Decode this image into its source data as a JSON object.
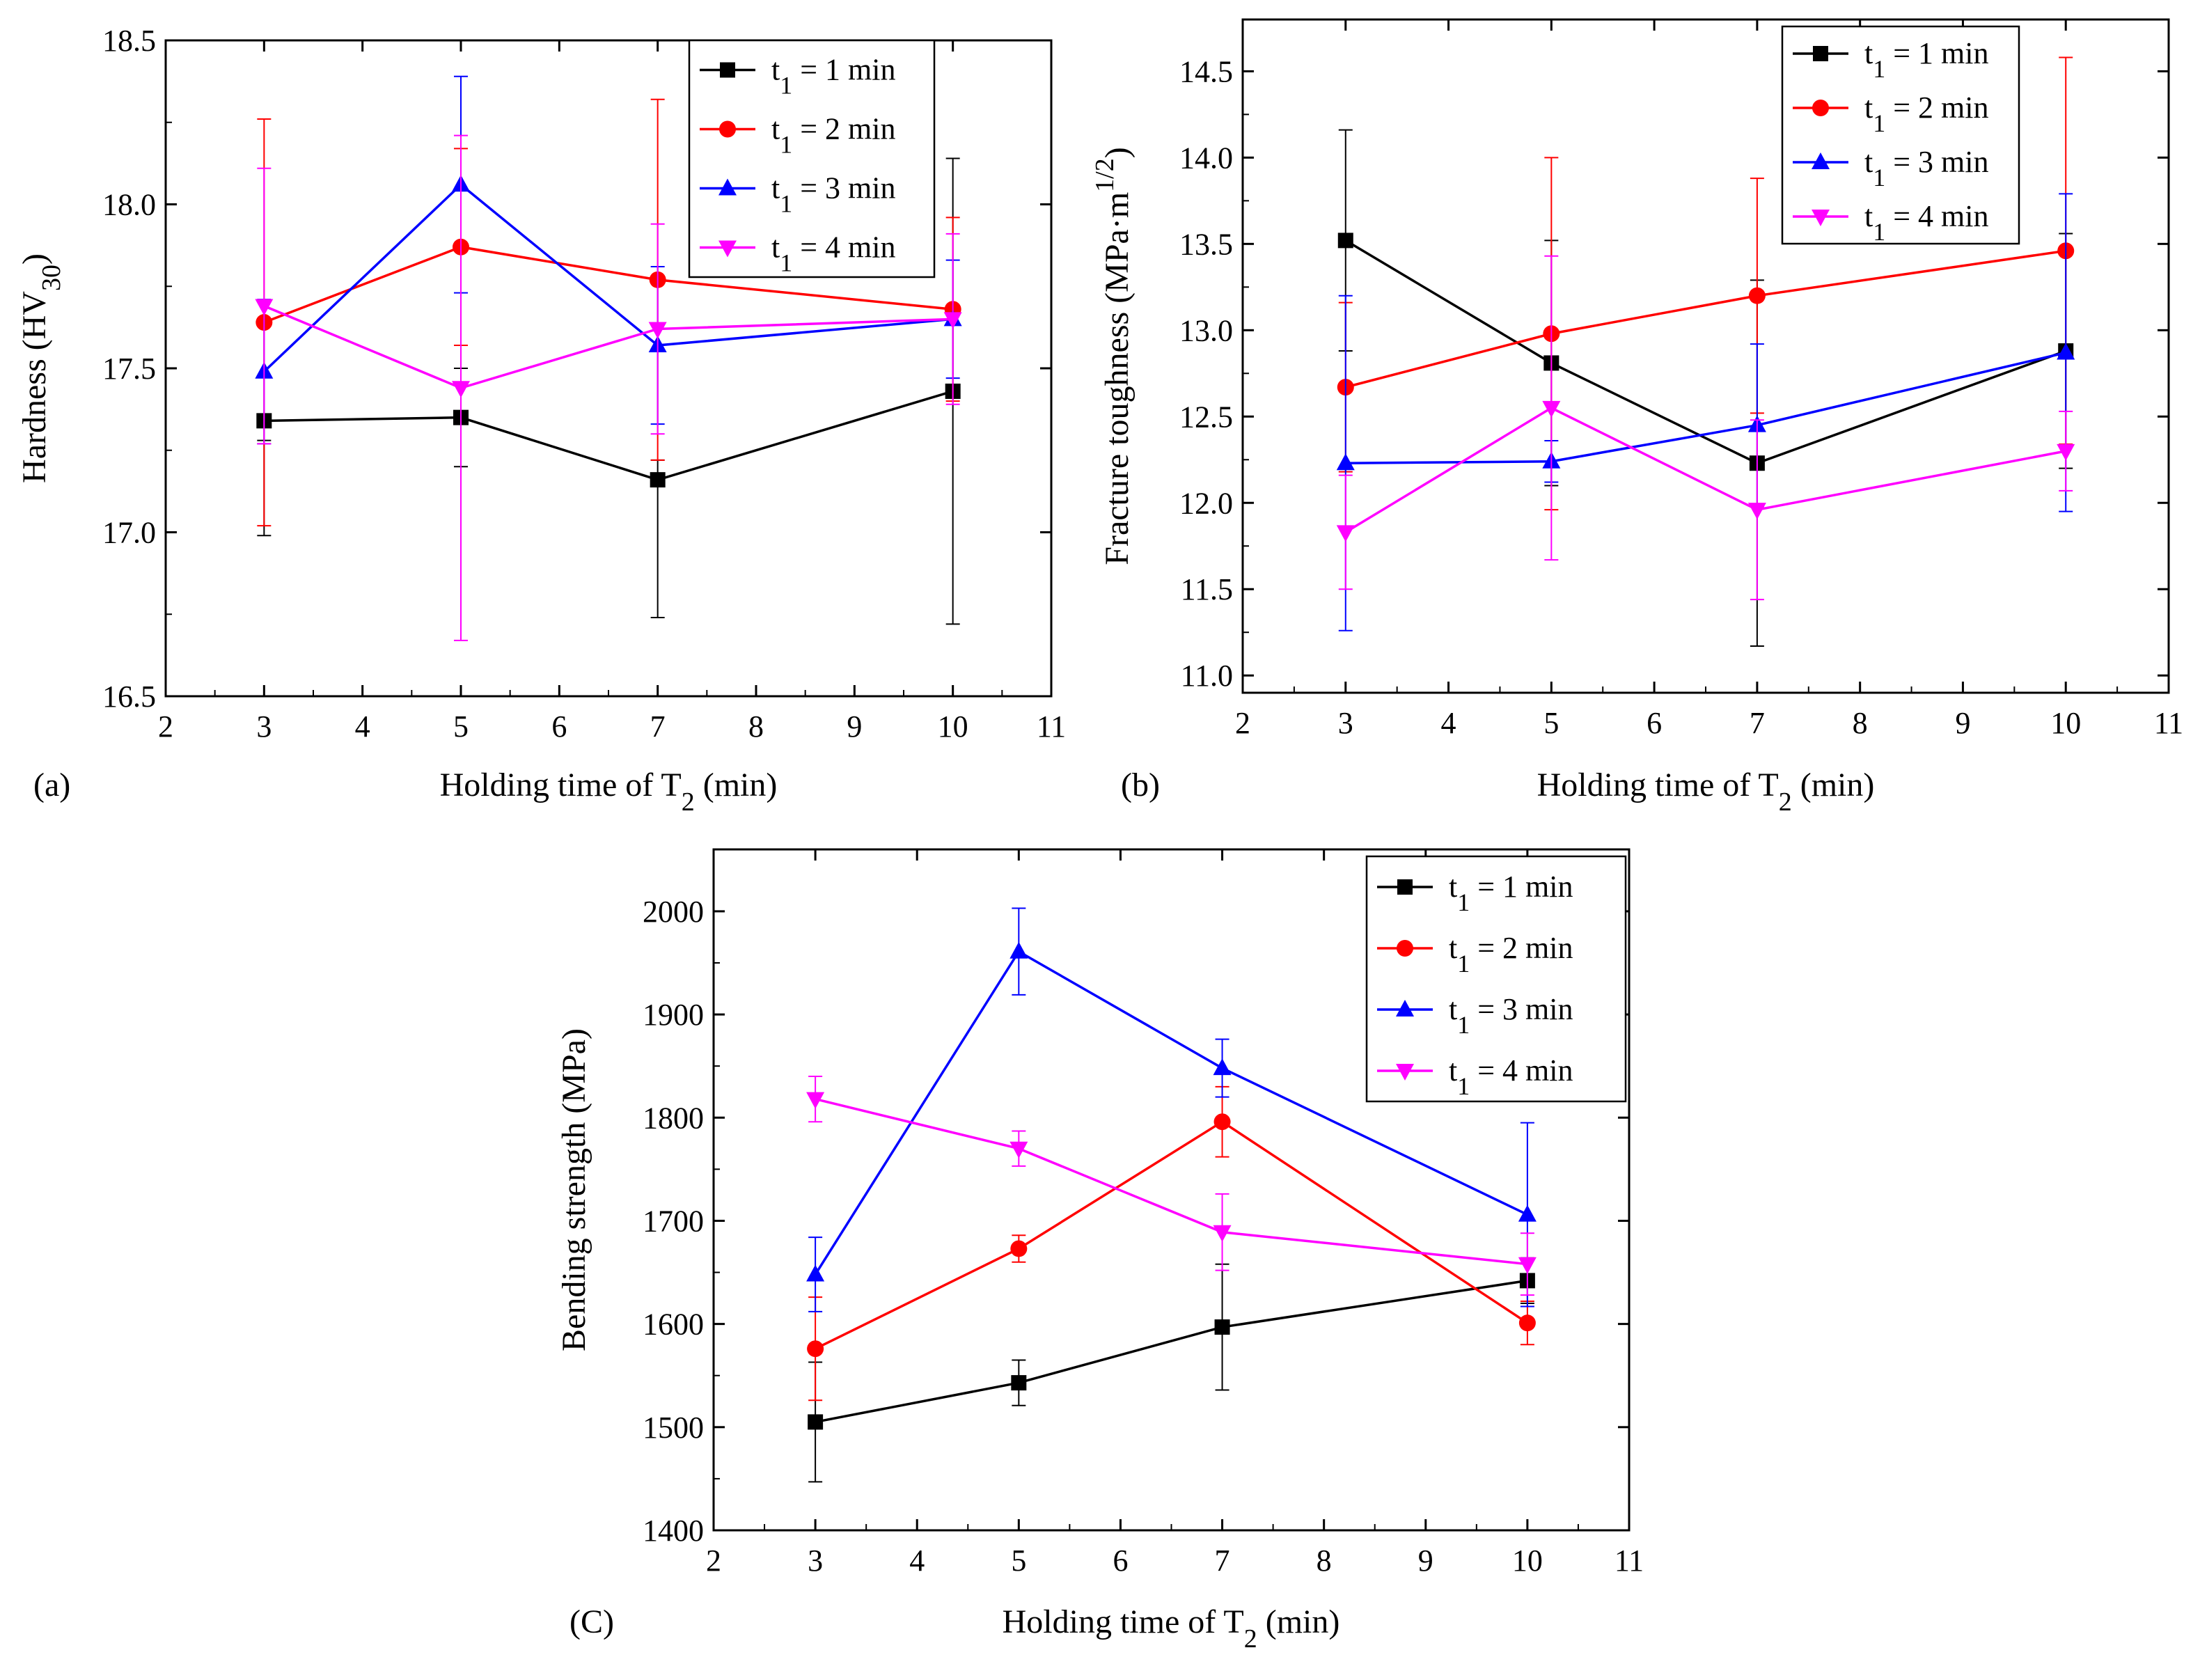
{
  "figure": {
    "series_template": [
      {
        "name": "t1 = 1 min",
        "color": "#000000",
        "marker": "square"
      },
      {
        "name": "t1 = 2 min",
        "color": "#ff0000",
        "marker": "circle"
      },
      {
        "name": "t1 = 3 min",
        "color": "#0000ff",
        "marker": "triangle-up"
      },
      {
        "name": "t1 = 4 min",
        "color": "#ff00ff",
        "marker": "triangle-down"
      }
    ]
  },
  "chart_data": [
    {
      "id": "a",
      "type": "line",
      "panel_label": "(a)",
      "title": "",
      "xlabel": {
        "main": "Holding time of T",
        "sub": "2",
        "tail": " (min)"
      },
      "ylabel": {
        "main": "Hardness (HV",
        "sub": "30",
        "tail": ")"
      },
      "x": [
        3,
        5,
        7,
        10
      ],
      "xlim": [
        2,
        11
      ],
      "ylim": [
        16.5,
        18.5
      ],
      "xticks": [
        "2",
        "3",
        "4",
        "5",
        "6",
        "7",
        "8",
        "9",
        "10",
        "11"
      ],
      "yticks": [
        "16.5",
        "17.0",
        "17.5",
        "18.0",
        "18.5"
      ],
      "ytick_values": [
        16.5,
        17.0,
        17.5,
        18.0,
        18.5
      ],
      "legend_position": "top-right",
      "series": [
        {
          "name": "t1 = 1 min",
          "legend_main": "t",
          "legend_sub": "1",
          "legend_tail": " = 1 min",
          "color": "#000000",
          "marker": "square",
          "values": [
            17.34,
            17.35,
            17.16,
            17.43
          ],
          "err_low": [
            16.99,
            17.2,
            16.74,
            16.72
          ],
          "err_high": [
            17.28,
            17.5,
            17.22,
            18.14
          ]
        },
        {
          "name": "t1 = 2 min",
          "legend_main": "t",
          "legend_sub": "1",
          "legend_tail": " = 2 min",
          "color": "#ff0000",
          "marker": "circle",
          "values": [
            17.64,
            17.87,
            17.77,
            17.68
          ],
          "err_low": [
            17.02,
            17.57,
            17.22,
            17.4
          ],
          "err_high": [
            18.26,
            18.17,
            18.32,
            17.96
          ]
        },
        {
          "name": "t1 = 3 min",
          "legend_main": "t",
          "legend_sub": "1",
          "legend_tail": " = 3 min",
          "color": "#0000ff",
          "marker": "triangle-up",
          "values": [
            17.49,
            18.06,
            17.57,
            17.65
          ],
          "err_low": [
            17.27,
            17.73,
            17.33,
            17.47
          ],
          "err_high": [
            17.71,
            18.39,
            17.81,
            17.83
          ]
        },
        {
          "name": "t1 = 4 min",
          "legend_main": "t",
          "legend_sub": "1",
          "legend_tail": " = 4 min",
          "color": "#ff00ff",
          "marker": "triangle-down",
          "values": [
            17.69,
            17.44,
            17.62,
            17.65
          ],
          "err_low": [
            17.27,
            16.67,
            17.3,
            17.39
          ],
          "err_high": [
            18.11,
            18.21,
            17.94,
            17.91
          ]
        }
      ]
    },
    {
      "id": "b",
      "type": "line",
      "panel_label": "(b)",
      "title": "",
      "xlabel": {
        "main": "Holding time of T",
        "sub": "2",
        "tail": " (min)"
      },
      "ylabel": {
        "main": "Fracture toughness (MPa·m",
        "sup": "1/2",
        "tail": ")"
      },
      "x": [
        3,
        5,
        7,
        10
      ],
      "xlim": [
        2,
        11
      ],
      "ylim": [
        10.9,
        14.8
      ],
      "xticks": [
        "2",
        "3",
        "4",
        "5",
        "6",
        "7",
        "8",
        "9",
        "10",
        "11"
      ],
      "yticks": [
        "11.0",
        "11.5",
        "12.0",
        "12.5",
        "13.0",
        "13.5",
        "14.0",
        "14.5"
      ],
      "ytick_values": [
        11.0,
        11.5,
        12.0,
        12.5,
        13.0,
        13.5,
        14.0,
        14.5
      ],
      "legend_position": "top-right",
      "series": [
        {
          "name": "t1 = 1 min",
          "legend_main": "t",
          "legend_sub": "1",
          "legend_tail": " = 1 min",
          "color": "#000000",
          "marker": "square",
          "values": [
            13.52,
            12.81,
            12.23,
            12.88
          ],
          "err_low": [
            12.88,
            12.1,
            11.17,
            12.2
          ],
          "err_high": [
            14.16,
            13.52,
            13.29,
            13.56
          ]
        },
        {
          "name": "t1 = 2 min",
          "legend_main": "t",
          "legend_sub": "1",
          "legend_tail": " = 2 min",
          "color": "#ff0000",
          "marker": "circle",
          "values": [
            12.67,
            12.98,
            13.2,
            13.46
          ],
          "err_low": [
            12.18,
            11.96,
            12.52,
            12.34
          ],
          "err_high": [
            13.16,
            14.0,
            13.88,
            14.58
          ]
        },
        {
          "name": "t1 = 3 min",
          "legend_main": "t",
          "legend_sub": "1",
          "legend_tail": " = 3 min",
          "color": "#0000ff",
          "marker": "triangle-up",
          "values": [
            12.23,
            12.24,
            12.45,
            12.87
          ],
          "err_low": [
            11.26,
            12.12,
            11.98,
            11.95
          ],
          "err_high": [
            13.2,
            12.36,
            12.92,
            13.79
          ]
        },
        {
          "name": "t1 = 4 min",
          "legend_main": "t",
          "legend_sub": "1",
          "legend_tail": " = 4 min",
          "color": "#ff00ff",
          "marker": "triangle-down",
          "values": [
            11.83,
            12.55,
            11.96,
            12.3
          ],
          "err_low": [
            11.5,
            11.67,
            11.44,
            12.07
          ],
          "err_high": [
            12.16,
            13.43,
            12.48,
            12.53
          ]
        }
      ]
    },
    {
      "id": "c",
      "type": "line",
      "panel_label": "(C)",
      "title": "",
      "xlabel": {
        "main": "Holding time of T",
        "sub": "2",
        "tail": " (min)"
      },
      "ylabel": {
        "main": "Bending strength (MPa)",
        "sub": "",
        "tail": ""
      },
      "x": [
        3,
        5,
        7,
        10
      ],
      "xlim": [
        2,
        11
      ],
      "ylim": [
        1400,
        2060
      ],
      "xticks": [
        "2",
        "3",
        "4",
        "5",
        "6",
        "7",
        "8",
        "9",
        "10",
        "11"
      ],
      "yticks": [
        "1400",
        "1500",
        "1600",
        "1700",
        "1800",
        "1900",
        "2000"
      ],
      "ytick_values": [
        1400,
        1500,
        1600,
        1700,
        1800,
        1900,
        2000
      ],
      "legend_position": "top-right",
      "series": [
        {
          "name": "t1 = 1 min",
          "legend_main": "t",
          "legend_sub": "1",
          "legend_tail": " = 1 min",
          "color": "#000000",
          "marker": "square",
          "values": [
            1505,
            1543,
            1597,
            1642
          ],
          "err_low": [
            1447,
            1521,
            1536,
            1620
          ],
          "err_high": [
            1563,
            1565,
            1658,
            1664
          ]
        },
        {
          "name": "t1 = 2 min",
          "legend_main": "t",
          "legend_sub": "1",
          "legend_tail": " = 2 min",
          "color": "#ff0000",
          "marker": "circle",
          "values": [
            1576,
            1673,
            1796,
            1601
          ],
          "err_low": [
            1526,
            1660,
            1762,
            1580
          ],
          "err_high": [
            1626,
            1686,
            1830,
            1622
          ]
        },
        {
          "name": "t1 = 3 min",
          "legend_main": "t",
          "legend_sub": "1",
          "legend_tail": " = 3 min",
          "color": "#0000ff",
          "marker": "triangle-up",
          "values": [
            1648,
            1961,
            1848,
            1706
          ],
          "err_low": [
            1612,
            1919,
            1820,
            1617
          ],
          "err_high": [
            1684,
            2003,
            1876,
            1795
          ]
        },
        {
          "name": "t1 = 4 min",
          "legend_main": "t",
          "legend_sub": "1",
          "legend_tail": " = 4 min",
          "color": "#ff00ff",
          "marker": "triangle-down",
          "values": [
            1818,
            1770,
            1689,
            1658
          ],
          "err_low": [
            1796,
            1753,
            1652,
            1628
          ],
          "err_high": [
            1840,
            1787,
            1726,
            1688
          ]
        }
      ]
    }
  ]
}
